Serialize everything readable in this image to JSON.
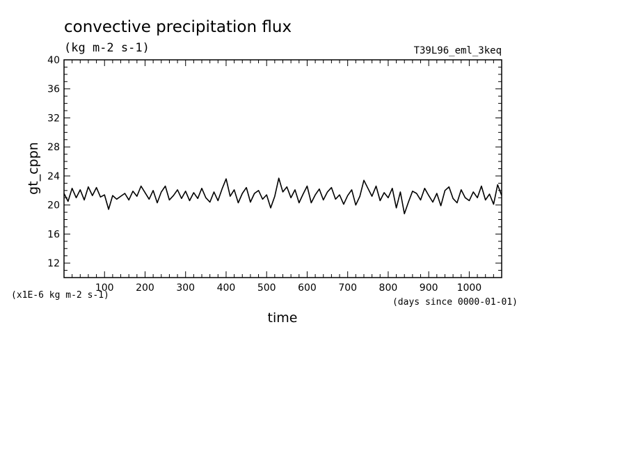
{
  "chart_data": {
    "type": "line",
    "title": "convective precipitation flux",
    "units": "(kg m-2 s-1)",
    "experiment": "T39L96_eml_3keq",
    "xlabel": "time",
    "x_units_note": "(days since 0000-01-01)",
    "ylabel": "gt_cppn",
    "y_scale_note": "(x1E-6 kg m-2 s-1)",
    "xlim": [
      0,
      1080
    ],
    "ylim": [
      10,
      40
    ],
    "x_ticks": [
      100,
      200,
      300,
      400,
      500,
      600,
      700,
      800,
      900,
      1000
    ],
    "y_ticks": [
      12,
      16,
      20,
      24,
      28,
      32,
      36,
      40
    ],
    "grid": false,
    "legend": "none",
    "line_color": "#000000",
    "series": [
      {
        "x": [
          0,
          10,
          20,
          30,
          40,
          50,
          60,
          70,
          80,
          90,
          100,
          110,
          120,
          130,
          140,
          150,
          160,
          170,
          180,
          190,
          200,
          210,
          220,
          230,
          240,
          250,
          260,
          270,
          280,
          290,
          300,
          310,
          320,
          330,
          340,
          350,
          360,
          370,
          380,
          390,
          400,
          410,
          420,
          430,
          440,
          450,
          460,
          470,
          480,
          490,
          500,
          510,
          520,
          530,
          540,
          550,
          560,
          570,
          580,
          590,
          600,
          610,
          620,
          630,
          640,
          650,
          660,
          670,
          680,
          690,
          700,
          710,
          720,
          730,
          740,
          750,
          760,
          770,
          780,
          790,
          800,
          810,
          820,
          830,
          840,
          850,
          860,
          870,
          880,
          890,
          900,
          910,
          920,
          930,
          940,
          950,
          960,
          970,
          980,
          990,
          1000,
          1010,
          1020,
          1030,
          1040,
          1050,
          1060,
          1070,
          1080
        ],
        "y": [
          21.6,
          20.5,
          22.3,
          21.0,
          22.1,
          20.7,
          22.5,
          21.3,
          22.4,
          21.1,
          21.4,
          19.4,
          21.3,
          20.8,
          21.2,
          21.6,
          20.7,
          21.9,
          21.2,
          22.6,
          21.7,
          20.8,
          22.0,
          20.3,
          21.8,
          22.6,
          20.7,
          21.3,
          22.1,
          20.9,
          21.9,
          20.6,
          21.7,
          20.9,
          22.3,
          21.0,
          20.4,
          21.8,
          20.6,
          22.2,
          23.6,
          21.2,
          22.1,
          20.3,
          21.6,
          22.4,
          20.4,
          21.6,
          22.0,
          20.8,
          21.4,
          19.6,
          21.2,
          23.7,
          21.8,
          22.5,
          21.0,
          22.1,
          20.3,
          21.5,
          22.6,
          20.3,
          21.4,
          22.2,
          20.7,
          21.8,
          22.4,
          20.8,
          21.4,
          20.1,
          21.3,
          22.1,
          20.0,
          21.2,
          23.4,
          22.3,
          21.2,
          22.6,
          20.6,
          21.7,
          21.0,
          22.3,
          19.6,
          21.8,
          18.8,
          20.4,
          21.9,
          21.6,
          20.7,
          22.3,
          21.3,
          20.4,
          21.6,
          19.9,
          22.0,
          22.5,
          20.9,
          20.3,
          22.1,
          21.0,
          20.6,
          21.8,
          21.0,
          22.6,
          20.7,
          21.5,
          20.1,
          22.8,
          21.3
        ]
      }
    ]
  }
}
